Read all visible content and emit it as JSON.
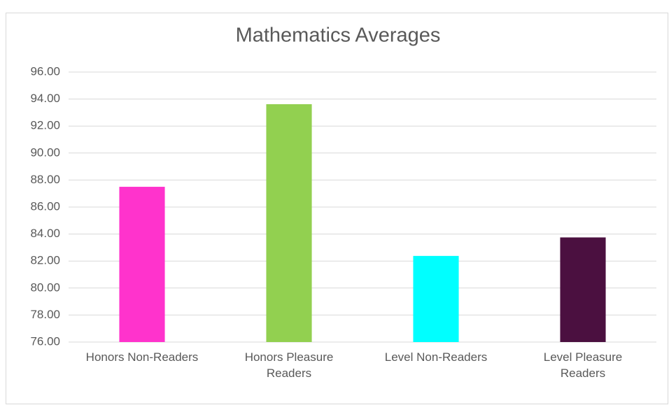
{
  "chart_data": {
    "type": "bar",
    "title": "Mathematics Averages",
    "categories": [
      "Honors Non-Readers",
      "Honors Pleasure Readers",
      "Level Non-Readers",
      "Level Pleasure Readers"
    ],
    "values": [
      87.5,
      93.62,
      82.38,
      83.75
    ],
    "colors": [
      "#ff33cc",
      "#92d050",
      "#00ffff",
      "#4b1040"
    ],
    "ylim": [
      76,
      96
    ],
    "yticks": [
      {
        "value": 76,
        "label": "76.00"
      },
      {
        "value": 78,
        "label": "78.00"
      },
      {
        "value": 80,
        "label": "80.00"
      },
      {
        "value": 82,
        "label": "82.00"
      },
      {
        "value": 84,
        "label": "84.00"
      },
      {
        "value": 86,
        "label": "86.00"
      },
      {
        "value": 88,
        "label": "88.00"
      },
      {
        "value": 90,
        "label": "90.00"
      },
      {
        "value": 92,
        "label": "92.00"
      },
      {
        "value": 94,
        "label": "94.00"
      },
      {
        "value": 96,
        "label": "96.00"
      }
    ],
    "grid": true
  }
}
